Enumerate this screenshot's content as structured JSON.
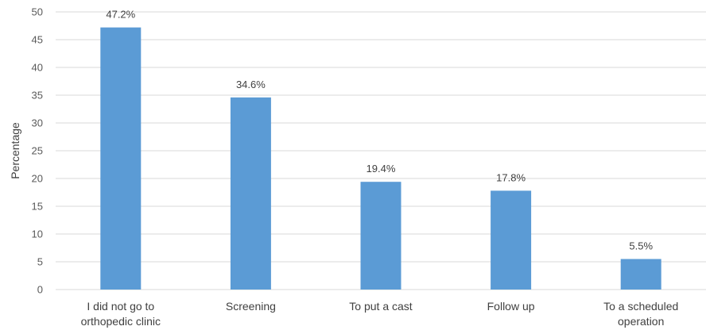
{
  "chart_data": {
    "type": "bar",
    "title": "",
    "xlabel": "",
    "ylabel": "Percentage",
    "ylim": [
      0,
      50
    ],
    "yticks": [
      0,
      5,
      10,
      15,
      20,
      25,
      30,
      35,
      40,
      45,
      50
    ],
    "grid": true,
    "categories": [
      [
        "I did not go to",
        "orthopedic clinic"
      ],
      [
        "Screening"
      ],
      [
        "To put a cast"
      ],
      [
        "Follow up"
      ],
      [
        "To a scheduled",
        "operation"
      ]
    ],
    "values": [
      47.2,
      34.6,
      19.4,
      17.8,
      5.5
    ],
    "data_labels": [
      "47.2%",
      "34.6%",
      "19.4%",
      "17.8%",
      "5.5%"
    ],
    "bar_color": "#5B9BD5",
    "grid_color": "#D9D9D9"
  }
}
